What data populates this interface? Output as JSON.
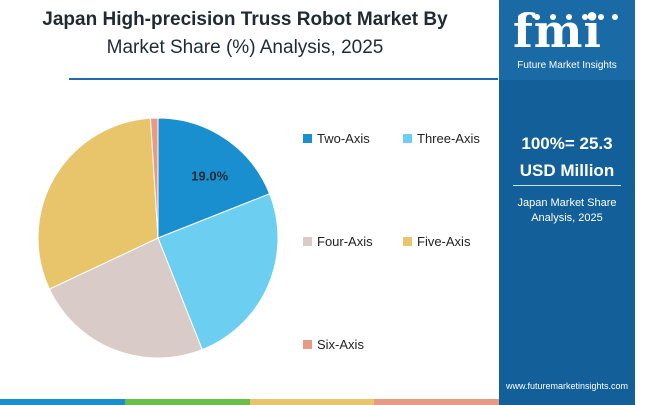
{
  "title": {
    "line1": "Japan High-precision Truss Robot Market By",
    "line2": "Market Share (%) Analysis, 2025"
  },
  "chart_data": {
    "type": "pie",
    "slices": [
      {
        "name": "Two-Axis",
        "value": 19.0,
        "color": "#1a8fd0",
        "label": "19.0%"
      },
      {
        "name": "Three-Axis",
        "value": 25.0,
        "color": "#6ccff2"
      },
      {
        "name": "Four-Axis",
        "value": 24.0,
        "color": "#d9ccc8"
      },
      {
        "name": "Five-Axis",
        "value": 31.0,
        "color": "#e8c46b"
      },
      {
        "name": "Six-Axis",
        "value": 1.0,
        "color": "#e89a85"
      }
    ],
    "legend_position": "right"
  },
  "legend": {
    "two_axis": "Two-Axis",
    "three_axis": "Three-Axis",
    "four_axis": "Four-Axis",
    "five_axis": "Five-Axis",
    "six_axis": "Six-Axis"
  },
  "sidebar": {
    "logo_mark": "fmi",
    "logo_text": "Future Market Insights",
    "total_line1": "100%= 25.3",
    "total_line2": "USD Million",
    "caption_line1": "Japan Market Share",
    "caption_line2": "Analysis, 2025",
    "url": "www.futuremarketinsights.com"
  },
  "colors": {
    "brand_blue": "#125f9a",
    "rule": "#1f6aa8",
    "bottom_bar": [
      "#1a8fd0",
      "#6abf4b",
      "#e8c46b",
      "#e89a85"
    ]
  }
}
